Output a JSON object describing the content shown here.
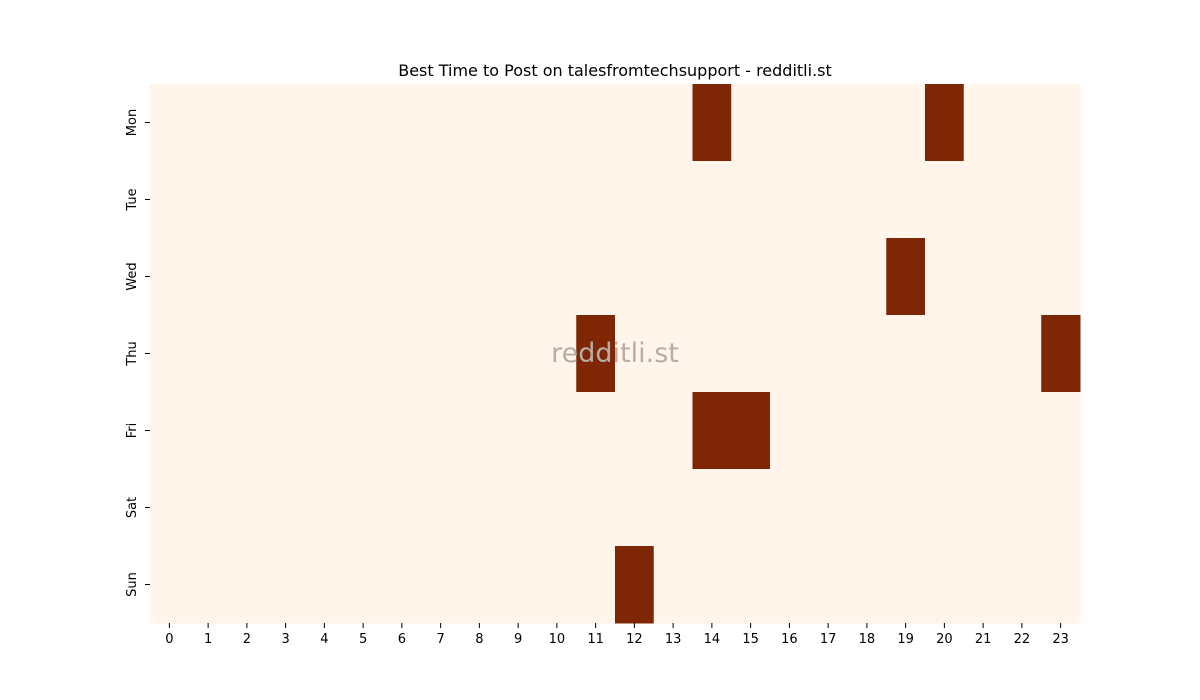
{
  "chart_data": {
    "type": "heatmap",
    "title": "Best Time to Post on talesfromtechsupport - redditli.st",
    "watermark": "redditli.st",
    "xlabel": "",
    "ylabel": "",
    "x_categories": [
      "0",
      "1",
      "2",
      "3",
      "4",
      "5",
      "6",
      "7",
      "8",
      "9",
      "10",
      "11",
      "12",
      "13",
      "14",
      "15",
      "16",
      "17",
      "18",
      "19",
      "20",
      "21",
      "22",
      "23"
    ],
    "y_categories": [
      "Mon",
      "Tue",
      "Wed",
      "Thu",
      "Fri",
      "Sat",
      "Sun"
    ],
    "values": [
      [
        0,
        0,
        0,
        0,
        0,
        0,
        0,
        0,
        0,
        0,
        0,
        0,
        0,
        0,
        1,
        0,
        0,
        0,
        0,
        0,
        1,
        0,
        0,
        0
      ],
      [
        0,
        0,
        0,
        0,
        0,
        0,
        0,
        0,
        0,
        0,
        0,
        0,
        0,
        0,
        0,
        0,
        0,
        0,
        0,
        0,
        0,
        0,
        0,
        0
      ],
      [
        0,
        0,
        0,
        0,
        0,
        0,
        0,
        0,
        0,
        0,
        0,
        0,
        0,
        0,
        0,
        0,
        0,
        0,
        0,
        1,
        0,
        0,
        0,
        0
      ],
      [
        0,
        0,
        0,
        0,
        0,
        0,
        0,
        0,
        0,
        0,
        0,
        1,
        0,
        0,
        0,
        0,
        0,
        0,
        0,
        0,
        0,
        0,
        0,
        1
      ],
      [
        0,
        0,
        0,
        0,
        0,
        0,
        0,
        0,
        0,
        0,
        0,
        0,
        0,
        0,
        1,
        1,
        0,
        0,
        0,
        0,
        0,
        0,
        0,
        0
      ],
      [
        0,
        0,
        0,
        0,
        0,
        0,
        0,
        0,
        0,
        0,
        0,
        0,
        0,
        0,
        0,
        0,
        0,
        0,
        0,
        0,
        0,
        0,
        0,
        0
      ],
      [
        0,
        0,
        0,
        0,
        0,
        0,
        0,
        0,
        0,
        0,
        0,
        0,
        1,
        0,
        0,
        0,
        0,
        0,
        0,
        0,
        0,
        0,
        0,
        0
      ]
    ],
    "colors": {
      "low": "#fff5eb",
      "high": "#7f2704"
    },
    "grid": false,
    "legend": "none"
  }
}
